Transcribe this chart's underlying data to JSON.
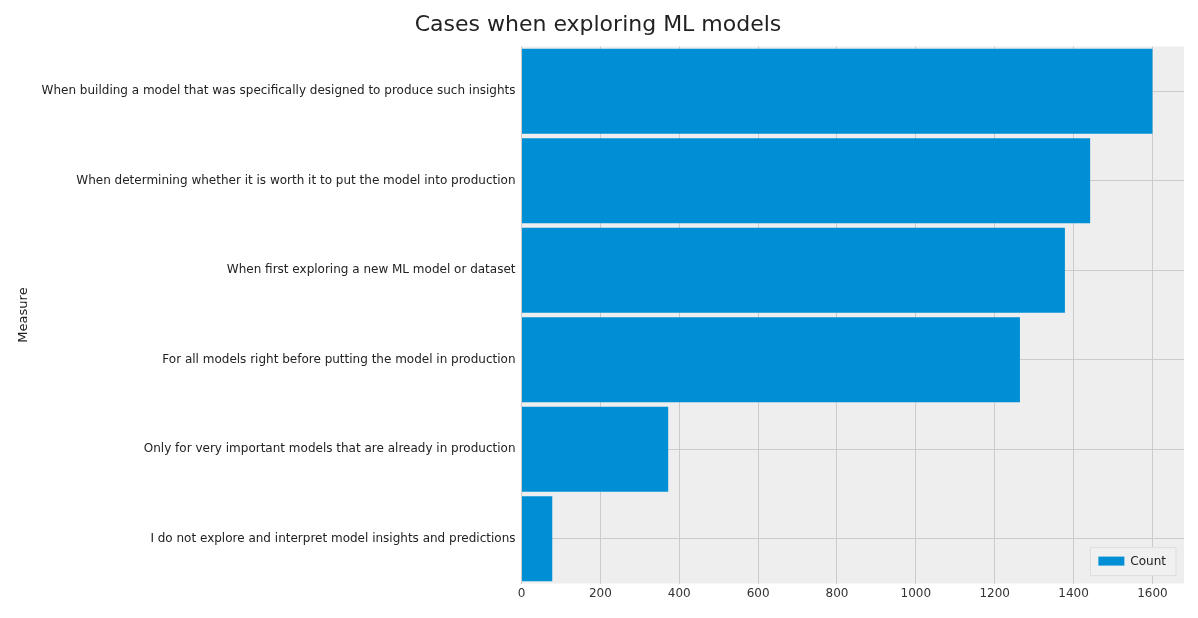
{
  "chart_data": {
    "type": "bar",
    "orientation": "horizontal",
    "title": "Cases when exploring ML models",
    "ylabel": "Measure",
    "categories": [
      "When building a model that was specifically designed to produce such insights",
      "When determining whether it is worth it to put the model into production",
      "When first exploring a new ML model or dataset",
      "For all models right before putting the model in production",
      "Only for very important models that are already in production",
      "I do not explore and interpret model insights and predictions"
    ],
    "series": [
      {
        "name": "Count",
        "color": "#008fd5",
        "values": [
          1600,
          1442,
          1378,
          1264,
          372,
          78
        ]
      }
    ],
    "xlim": [
      0,
      1680
    ],
    "xticks": [
      0,
      200,
      400,
      600,
      800,
      1000,
      1200,
      1400,
      1600
    ],
    "grid": true,
    "legend": "bottom right"
  }
}
